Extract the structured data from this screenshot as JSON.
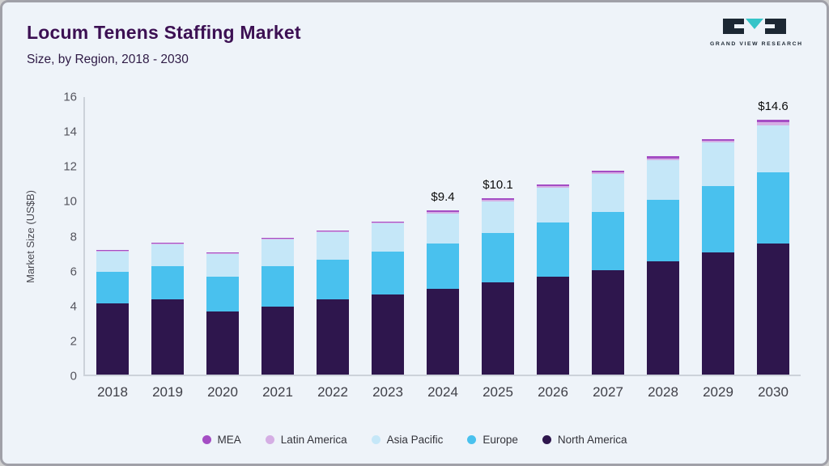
{
  "header": {
    "title": "Locum Tenens Staffing Market",
    "subtitle": "Size, by Region, 2018 - 2030"
  },
  "logo": {
    "text": "GRAND VIEW RESEARCH",
    "dark_color": "#1c2733",
    "teal_color": "#35c4c8"
  },
  "chart_data": {
    "type": "bar",
    "stacked": true,
    "title": "Locum Tenens Staffing Market",
    "subtitle": "Size, by Region, 2018 - 2030",
    "ylabel": "Market Size (US$B)",
    "ylim": [
      0,
      16
    ],
    "yticks": [
      0,
      2,
      4,
      6,
      8,
      10,
      12,
      14,
      16
    ],
    "grid": false,
    "legend_position": "bottom",
    "categories": [
      "2018",
      "2019",
      "2020",
      "2021",
      "2022",
      "2023",
      "2024",
      "2025",
      "2026",
      "2027",
      "2028",
      "2029",
      "2030"
    ],
    "series": [
      {
        "name": "North America",
        "color": "#2e164d",
        "values": [
          4.1,
          4.3,
          3.6,
          3.9,
          4.3,
          4.6,
          4.9,
          5.3,
          5.6,
          6.0,
          6.5,
          7.0,
          7.5
        ]
      },
      {
        "name": "Europe",
        "color": "#49c1ee",
        "values": [
          1.8,
          1.9,
          2.0,
          2.3,
          2.3,
          2.45,
          2.6,
          2.8,
          3.1,
          3.3,
          3.5,
          3.8,
          4.1
        ]
      },
      {
        "name": "Asia Pacific",
        "color": "#c5e7f8",
        "values": [
          1.15,
          1.25,
          1.3,
          1.55,
          1.55,
          1.6,
          1.75,
          1.84,
          2.0,
          2.2,
          2.3,
          2.5,
          2.7
        ]
      },
      {
        "name": "Latin America",
        "color": "#d5aee4",
        "values": [
          0.05,
          0.05,
          0.05,
          0.05,
          0.05,
          0.05,
          0.07,
          0.08,
          0.1,
          0.1,
          0.1,
          0.1,
          0.15
        ]
      },
      {
        "name": "MEA",
        "color": "#a44dc4",
        "values": [
          0.05,
          0.05,
          0.05,
          0.05,
          0.05,
          0.05,
          0.08,
          0.08,
          0.1,
          0.1,
          0.1,
          0.1,
          0.15
        ]
      }
    ],
    "legend_order": [
      "MEA",
      "Latin America",
      "Asia Pacific",
      "Europe",
      "North America"
    ],
    "annotations": [
      {
        "category": "2024",
        "text": "$9.4"
      },
      {
        "category": "2025",
        "text": "$10.1"
      },
      {
        "category": "2030",
        "text": "$14.6"
      }
    ]
  }
}
